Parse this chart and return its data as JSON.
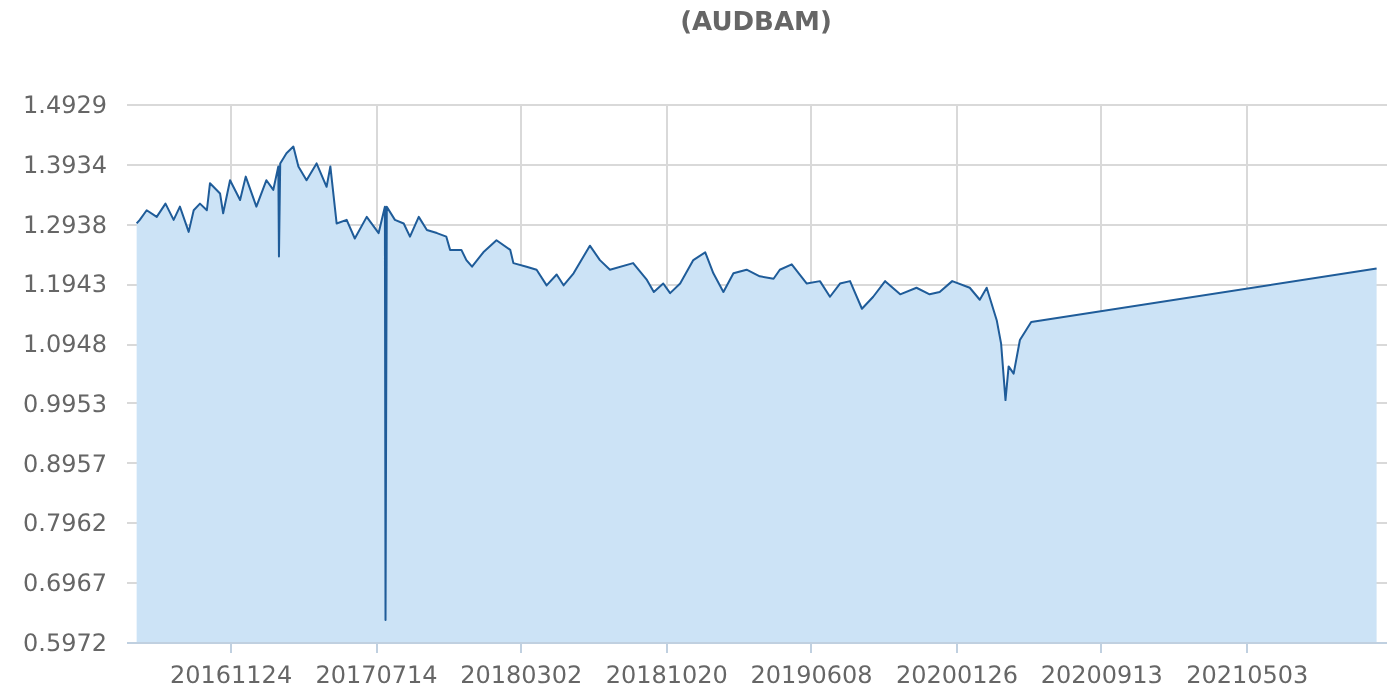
{
  "chart_data": {
    "type": "area",
    "title": "(AUDBAM)",
    "x": [
      "2016-06-28",
      "2016-07-03",
      "2016-07-14",
      "2016-07-30",
      "2016-08-13",
      "2016-08-26",
      "2016-09-05",
      "2016-09-19",
      "2016-09-27",
      "2016-10-07",
      "2016-10-18",
      "2016-10-23",
      "2016-11-08",
      "2016-11-13",
      "2016-11-24",
      "2016-12-10",
      "2016-12-19",
      "2017-01-05",
      "2017-01-21",
      "2017-02-01",
      "2017-02-09",
      "2017-02-10",
      "2017-02-12",
      "2017-02-22",
      "2017-03-05",
      "2017-03-13",
      "2017-03-26",
      "2017-04-11",
      "2017-04-27",
      "2017-05-03",
      "2017-05-13",
      "2017-05-29",
      "2017-06-11",
      "2017-06-30",
      "2017-07-19",
      "2017-07-29",
      "2017-07-30",
      "2017-08-01",
      "2017-08-14",
      "2017-08-28",
      "2017-09-07",
      "2017-09-21",
      "2017-10-04",
      "2017-10-20",
      "2017-11-04",
      "2017-11-10",
      "2017-11-28",
      "2017-12-06",
      "2017-12-15",
      "2018-01-02",
      "2018-01-23",
      "2018-02-14",
      "2018-02-19",
      "2018-03-12",
      "2018-03-28",
      "2018-04-13",
      "2018-04-29",
      "2018-05-10",
      "2018-05-26",
      "2018-06-21",
      "2018-07-07",
      "2018-07-23",
      "2018-08-29",
      "2018-09-20",
      "2018-10-01",
      "2018-10-16",
      "2018-10-27",
      "2018-11-12",
      "2018-12-03",
      "2018-12-22",
      "2019-01-04",
      "2019-01-20",
      "2019-02-05",
      "2019-02-26",
      "2019-03-19",
      "2019-04-10",
      "2019-04-20",
      "2019-05-09",
      "2019-06-02",
      "2019-06-23",
      "2019-07-09",
      "2019-07-25",
      "2019-08-10",
      "2019-08-29",
      "2019-09-16",
      "2019-10-05",
      "2019-10-29",
      "2019-11-24",
      "2019-12-15",
      "2019-12-31",
      "2020-01-20",
      "2020-02-17",
      "2020-03-04",
      "2020-03-15",
      "2020-03-31",
      "2020-04-07",
      "2020-04-14",
      "2020-04-19",
      "2020-04-27",
      "2020-05-07",
      "2020-05-25",
      "2021-11-27"
    ],
    "series": [
      {
        "color": "#1f5c99",
        "values": [
          1.294,
          1.3,
          1.316,
          1.305,
          1.327,
          1.3,
          1.322,
          1.28,
          1.316,
          1.327,
          1.316,
          1.361,
          1.344,
          1.311,
          1.366,
          1.333,
          1.372,
          1.322,
          1.366,
          1.35,
          1.389,
          1.239,
          1.394,
          1.411,
          1.422,
          1.389,
          1.366,
          1.394,
          1.355,
          1.389,
          1.294,
          1.3,
          1.269,
          1.305,
          1.278,
          1.322,
          0.634,
          1.322,
          1.3,
          1.294,
          1.272,
          1.305,
          1.283,
          1.278,
          1.272,
          1.25,
          1.25,
          1.233,
          1.222,
          1.246,
          1.266,
          1.25,
          1.228,
          1.222,
          1.217,
          1.191,
          1.209,
          1.191,
          1.211,
          1.257,
          1.233,
          1.217,
          1.228,
          1.2,
          1.18,
          1.194,
          1.178,
          1.194,
          1.233,
          1.246,
          1.211,
          1.18,
          1.211,
          1.217,
          1.206,
          1.202,
          1.217,
          1.226,
          1.194,
          1.198,
          1.172,
          1.194,
          1.198,
          1.152,
          1.172,
          1.198,
          1.176,
          1.187,
          1.176,
          1.18,
          1.198,
          1.187,
          1.167,
          1.187,
          1.133,
          1.094,
          1.0,
          1.056,
          1.044,
          1.1,
          1.13,
          1.219
        ]
      }
    ],
    "xlim": [
      "2016-06-11",
      "2021-12-12"
    ],
    "xticks": [
      {
        "value": "2016-11-24",
        "label": "20161124"
      },
      {
        "value": "2017-07-14",
        "label": "20170714"
      },
      {
        "value": "2018-03-02",
        "label": "20180302"
      },
      {
        "value": "2018-10-20",
        "label": "20181020"
      },
      {
        "value": "2019-06-08",
        "label": "20190608"
      },
      {
        "value": "2020-01-26",
        "label": "20200126"
      },
      {
        "value": "2020-09-13",
        "label": "20200913"
      },
      {
        "value": "2021-05-03",
        "label": "20210503"
      }
    ],
    "ylim": [
      0.5972,
      1.4929
    ],
    "yticks": [
      0.5972,
      0.6967,
      0.7962,
      0.8957,
      0.9953,
      1.0948,
      1.1943,
      1.2938,
      1.3934,
      1.4929
    ],
    "grid": true
  }
}
